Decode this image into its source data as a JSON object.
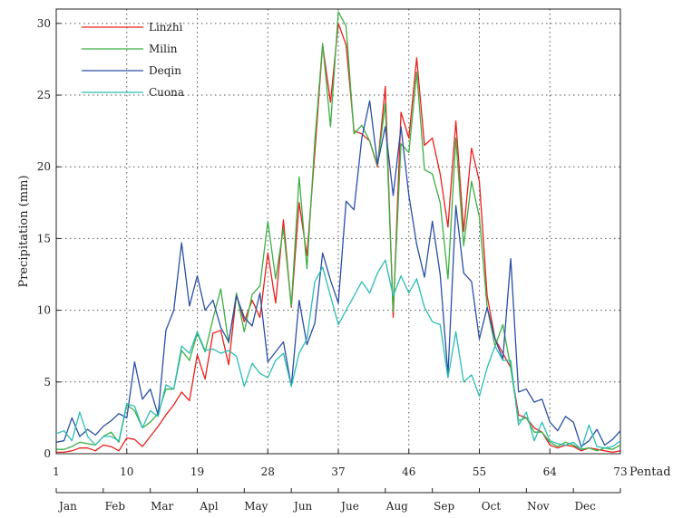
{
  "chart_data": {
    "type": "line",
    "title": "",
    "xlabel": "Pentad",
    "ylabel": "Precipitation (mm)",
    "xlim": [
      1,
      73
    ],
    "ylim": [
      0,
      31
    ],
    "xticks": [
      1,
      10,
      19,
      28,
      37,
      46,
      55,
      64,
      73
    ],
    "yticks": [
      0,
      5,
      10,
      15,
      20,
      25,
      30
    ],
    "months": [
      "Jan",
      "Feb",
      "Mar",
      "Apl",
      "May",
      "Jun",
      "Jue",
      "Aug",
      "Sep",
      "Oct",
      "Nov",
      "Dec"
    ],
    "grid": true,
    "legend_position": "top-left",
    "series": [
      {
        "name": "Linzhi",
        "color": "#e8201c",
        "values": [
          0.1,
          0.1,
          0.2,
          0.4,
          0.4,
          0.2,
          0.6,
          0.5,
          0.2,
          1.1,
          1.0,
          0.5,
          1.2,
          1.9,
          2.7,
          3.4,
          4.3,
          3.7,
          6.9,
          5.2,
          8.4,
          8.6,
          6.2,
          11.1,
          9.2,
          10.7,
          9.5,
          14.0,
          10.5,
          16.3,
          10.2,
          17.5,
          13.8,
          21.0,
          28.5,
          24.5,
          30.0,
          28.5,
          22.5,
          22.3,
          21.8,
          20.0,
          25.6,
          9.5,
          23.8,
          22.0,
          27.6,
          21.5,
          22.0,
          19.5,
          15.8,
          23.2,
          15.5,
          21.3,
          19.0,
          11.0,
          8.0,
          7.0,
          6.0,
          2.7,
          2.5,
          1.8,
          1.5,
          0.6,
          0.4,
          0.6,
          0.5,
          0.2,
          0.4,
          0.3,
          0.2,
          0.1,
          0.2
        ]
      },
      {
        "name": "Milin",
        "color": "#3cb043",
        "values": [
          0.3,
          0.3,
          0.5,
          0.8,
          0.7,
          0.6,
          1.2,
          1.5,
          0.8,
          3.4,
          3.0,
          1.8,
          2.2,
          2.8,
          4.5,
          4.5,
          7.2,
          6.5,
          8.4,
          7.1,
          9.4,
          11.5,
          7.7,
          11.2,
          8.5,
          11.1,
          11.7,
          16.2,
          12.2,
          15.7,
          10.3,
          19.3,
          12.9,
          21.8,
          28.6,
          22.8,
          30.8,
          29.8,
          22.3,
          22.9,
          21.8,
          20.1,
          24.4,
          9.9,
          21.6,
          21.0,
          26.6,
          19.8,
          19.5,
          17.5,
          12.2,
          22.0,
          14.5,
          19.0,
          16.5,
          10.2,
          7.5,
          9.0,
          6.0,
          2.3,
          2.5,
          1.5,
          1.5,
          0.8,
          0.5,
          0.8,
          0.6,
          0.3,
          0.4,
          0.2,
          0.4,
          0.3,
          0.6
        ]
      },
      {
        "name": "Deqin",
        "color": "#2b4fa5",
        "values": [
          0.8,
          0.9,
          2.5,
          1.2,
          1.7,
          1.3,
          1.9,
          2.3,
          2.8,
          2.5,
          6.4,
          3.8,
          4.5,
          2.7,
          8.6,
          10.0,
          14.7,
          10.3,
          12.4,
          10.0,
          10.7,
          8.8,
          7.8,
          11.0,
          9.5,
          8.9,
          11.2,
          6.4,
          7.1,
          7.8,
          4.7,
          10.7,
          7.6,
          9.1,
          14.0,
          12.1,
          10.5,
          17.6,
          17.0,
          22.0,
          24.6,
          20.2,
          22.8,
          18.0,
          22.8,
          18.0,
          14.6,
          12.3,
          16.2,
          12.5,
          5.5,
          17.3,
          12.6,
          12.0,
          8.0,
          10.2,
          8.0,
          6.6,
          13.6,
          4.3,
          4.5,
          3.6,
          3.8,
          2.2,
          1.6,
          2.6,
          2.2,
          0.5,
          0.9,
          1.7,
          0.6,
          1.0,
          1.6
        ]
      },
      {
        "name": "Cuona",
        "color": "#2cbdb4",
        "values": [
          1.4,
          1.6,
          0.9,
          2.9,
          1.2,
          0.6,
          1.2,
          1.2,
          0.9,
          3.5,
          3.3,
          1.8,
          3.0,
          2.6,
          4.8,
          4.5,
          7.5,
          7.0,
          8.5,
          7.2,
          7.3,
          7.0,
          7.2,
          6.8,
          4.7,
          6.3,
          5.6,
          5.3,
          6.5,
          7.0,
          4.7,
          7.0,
          8.0,
          12.0,
          13.0,
          11.0,
          9.0,
          10.0,
          11.0,
          12.0,
          11.2,
          12.6,
          13.5,
          11.0,
          12.4,
          11.2,
          12.2,
          10.2,
          9.2,
          9.0,
          5.3,
          8.5,
          5.0,
          5.5,
          4.0,
          6.0,
          7.5,
          6.5,
          6.5,
          2.0,
          2.9,
          0.9,
          2.2,
          0.9,
          0.7,
          0.6,
          0.8,
          0.3,
          2.0,
          0.5,
          0.4,
          0.5,
          0.9
        ]
      }
    ]
  }
}
